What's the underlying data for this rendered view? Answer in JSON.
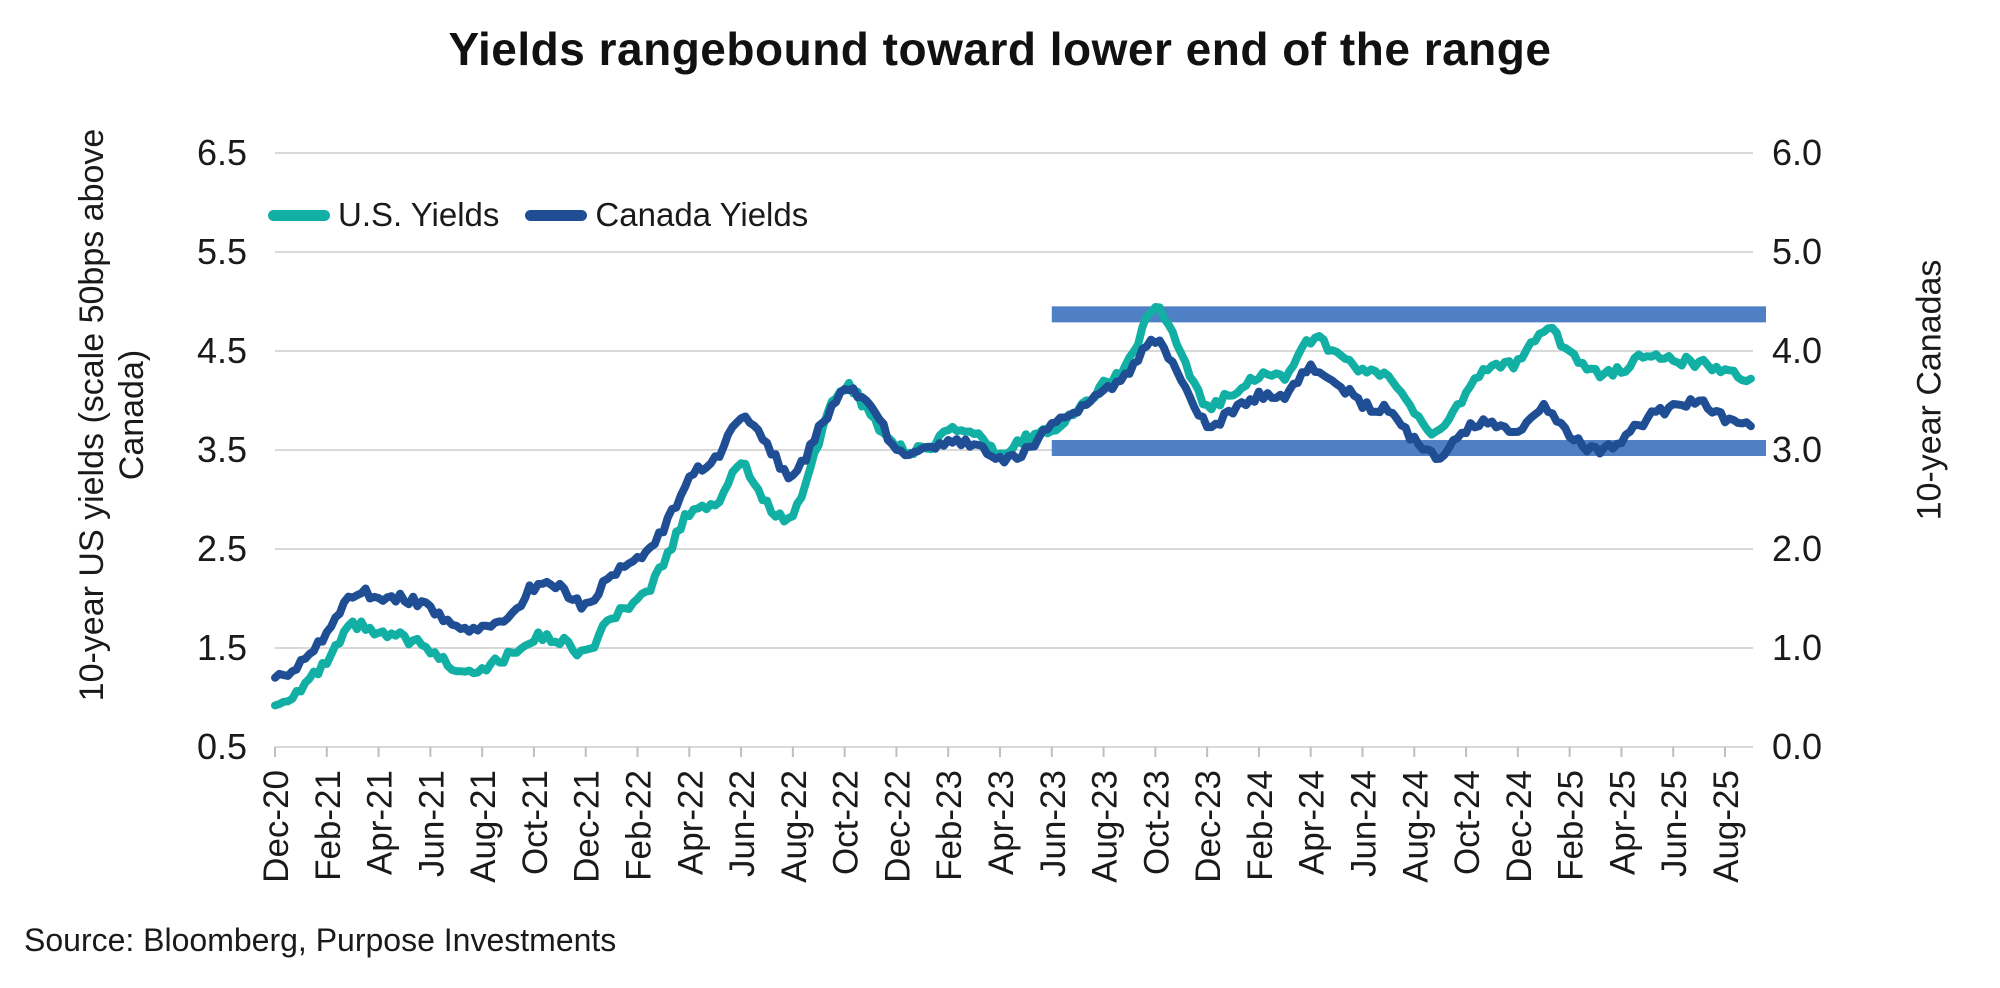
{
  "title": "Yields rangebound toward lower end of the range",
  "source": "Source: Bloomberg, Purpose Investments",
  "colors": {
    "us_line": "#12b0a4",
    "canada_line": "#1f4e94",
    "band": "#4f7fc4",
    "gridline": "#d9d9d9",
    "tick": "#bfbfbf",
    "ink": "#1a1a1a"
  },
  "legend": [
    {
      "label": "U.S. Yields",
      "color": "#12b0a4"
    },
    {
      "label": "Canada Yields",
      "color": "#1f4e94"
    }
  ],
  "left_axis": {
    "title": "10-year US yields (scale 50bps above Canada)",
    "ticks": [
      "6.5",
      "5.5",
      "4.5",
      "3.5",
      "2.5",
      "1.5",
      "0.5"
    ],
    "min": 0.5,
    "max": 6.5
  },
  "right_axis": {
    "title": "10-year Canadas",
    "ticks": [
      "6.0",
      "5.0",
      "4.0",
      "3.0",
      "2.0",
      "1.0",
      "0.0"
    ],
    "min": 0.0,
    "max": 6.0
  },
  "x_axis": {
    "labels": [
      "Dec-20",
      "Feb-21",
      "Apr-21",
      "Jun-21",
      "Aug-21",
      "Oct-21",
      "Dec-21",
      "Feb-22",
      "Apr-22",
      "Jun-22",
      "Aug-22",
      "Oct-22",
      "Dec-22",
      "Feb-23",
      "Apr-23",
      "Jun-23",
      "Aug-23",
      "Oct-23",
      "Dec-23",
      "Feb-24",
      "Apr-24",
      "Jun-24",
      "Aug-24",
      "Oct-24",
      "Dec-24",
      "Feb-25",
      "Apr-25",
      "Jun-25",
      "Aug-25"
    ]
  },
  "chart_data": {
    "type": "line",
    "title": "Yields rangebound toward lower end of the range",
    "xlabel": "",
    "ylabel_left": "10-year US yields (scale 50bps above Canada)",
    "ylabel_right": "10-year Canadas",
    "ylim_left": [
      0.5,
      6.5
    ],
    "ylim_right": [
      0.0,
      6.0
    ],
    "grid": true,
    "legend_position": "top-left-inside",
    "x": [
      "Dec-20",
      "Jan-21",
      "Feb-21",
      "Mar-21",
      "Apr-21",
      "May-21",
      "Jun-21",
      "Jul-21",
      "Aug-21",
      "Sep-21",
      "Oct-21",
      "Nov-21",
      "Dec-21",
      "Jan-22",
      "Feb-22",
      "Mar-22",
      "Apr-22",
      "May-22",
      "Jun-22",
      "Jul-22",
      "Aug-22",
      "Sep-22",
      "Oct-22",
      "Nov-22",
      "Dec-22",
      "Jan-23",
      "Feb-23",
      "Mar-23",
      "Apr-23",
      "May-23",
      "Jun-23",
      "Jul-23",
      "Aug-23",
      "Sep-23",
      "Oct-23",
      "Nov-23",
      "Dec-23",
      "Jan-24",
      "Feb-24",
      "Mar-24",
      "Apr-24",
      "May-24",
      "Jun-24",
      "Jul-24",
      "Aug-24",
      "Sep-24",
      "Oct-24",
      "Nov-24",
      "Dec-24",
      "Jan-25",
      "Feb-25",
      "Mar-25",
      "Apr-25",
      "May-25",
      "Jun-25",
      "Jul-25",
      "Aug-25",
      "Sep-25"
    ],
    "series": [
      {
        "name": "U.S. Yields",
        "axis": "left",
        "color": "#12b0a4",
        "values": [
          0.92,
          1.1,
          1.35,
          1.72,
          1.63,
          1.6,
          1.47,
          1.3,
          1.3,
          1.42,
          1.6,
          1.58,
          1.46,
          1.8,
          1.95,
          2.35,
          2.88,
          2.95,
          3.35,
          2.95,
          2.85,
          3.6,
          4.15,
          3.85,
          3.55,
          3.5,
          3.7,
          3.65,
          3.45,
          3.62,
          3.72,
          3.9,
          4.15,
          4.4,
          4.95,
          4.45,
          3.95,
          4.1,
          4.25,
          4.25,
          4.62,
          4.45,
          4.3,
          4.22,
          3.9,
          3.68,
          4.08,
          4.35,
          4.38,
          4.72,
          4.5,
          4.28,
          4.32,
          4.46,
          4.4,
          4.38,
          4.28,
          4.22
        ]
      },
      {
        "name": "Canada Yields",
        "axis": "right",
        "color": "#1f4e94",
        "values": [
          0.7,
          0.85,
          1.15,
          1.55,
          1.52,
          1.5,
          1.4,
          1.22,
          1.18,
          1.3,
          1.62,
          1.6,
          1.43,
          1.75,
          1.9,
          2.2,
          2.72,
          2.9,
          3.3,
          3.05,
          2.75,
          3.2,
          3.58,
          3.45,
          3.0,
          3.0,
          3.1,
          3.05,
          2.9,
          2.98,
          3.25,
          3.42,
          3.58,
          3.78,
          4.12,
          3.7,
          3.25,
          3.4,
          3.55,
          3.55,
          3.82,
          3.7,
          3.45,
          3.4,
          3.1,
          2.95,
          3.2,
          3.28,
          3.15,
          3.42,
          3.15,
          3.0,
          3.1,
          3.32,
          3.42,
          3.47,
          3.32,
          3.24
        ]
      }
    ],
    "annotations": {
      "bands": [
        {
          "name": "range-high-band",
          "axis": "right",
          "value": 4.37,
          "from": "Jun-23",
          "color": "#4f7fc4"
        },
        {
          "name": "range-low-band",
          "axis": "right",
          "value": 3.02,
          "from": "Jun-23",
          "color": "#4f7fc4"
        }
      ]
    }
  }
}
